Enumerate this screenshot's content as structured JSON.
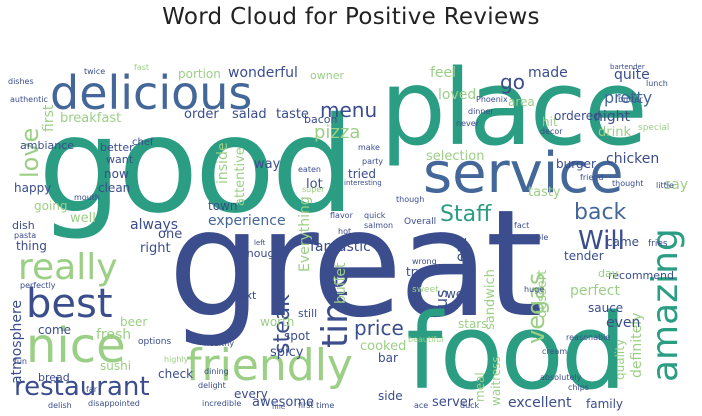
{
  "title": "Word Cloud for Positive Reviews",
  "colors": {
    "teal": "#2a9d82",
    "navy": "#3b4d8c",
    "sage": "#9ccf86",
    "mint": "#b9d9a9",
    "blue": "#44679a"
  },
  "words": {
    "great": "great",
    "good": "good",
    "place": "place",
    "food": "food",
    "service": "service",
    "delicious": "delicious",
    "friendly": "friendly",
    "nice": "nice",
    "best": "best",
    "really": "really",
    "amazing": "amazing",
    "restaurant": "restaurant",
    "time": "time",
    "staff": "Staff",
    "love": "love",
    "back": "back",
    "will": "Will",
    "vegas": "vegas",
    "menu": "menu",
    "pizza": "pizza",
    "steak": "steak",
    "go": "go",
    "made": "made",
    "pretty": "pretty",
    "wonderful": "wonderful",
    "quite": "quite",
    "first": "first",
    "portion": "portion",
    "breakfast": "breakfast",
    "order": "order",
    "salad": "salad",
    "taste": "taste",
    "bacon": "bacon",
    "feel": "feel",
    "loved": "loved",
    "area": "area",
    "night": "night",
    "drink": "drink",
    "hit": "hit",
    "ordered": "ordered",
    "selection": "selection",
    "chicken": "chicken",
    "burger": "burger",
    "tasty": "tasty",
    "say": "say",
    "inside": "inside",
    "attentive": "attentive",
    "everything": "Everything",
    "tried": "tried",
    "lot": "lot",
    "way": "way",
    "awesome": "awesome",
    "experience": "experience",
    "fantastic": "fantastic",
    "always": "always",
    "one": "one",
    "right": "right",
    "town": "town",
    "happy": "happy",
    "clean": "clean",
    "now": "now",
    "going": "going",
    "well": "well",
    "thing": "thing",
    "dish": "dish",
    "pasta": "pasta",
    "try": "try",
    "eat": "eat",
    "wrong": "wrong",
    "sandwich": "sandwich",
    "dessert": "dessert",
    "came": "came",
    "tender": "tender",
    "definitely": "definitely",
    "quality": "quality",
    "perfect": "perfect",
    "buffet": "buffet",
    "went": "went",
    "us": "us",
    "price": "price",
    "fresh": "fresh",
    "beer": "beer",
    "come": "come",
    "atmosphere": "atmosphere",
    "spot": "spot",
    "spicy": "spicy",
    "cooked": "cooked",
    "stars": "stars",
    "even": "even",
    "sauce": "sauce",
    "recommend": "recommend",
    "bar": "bar",
    "check": "check",
    "excellent": "excellent",
    "family": "family",
    "server": "server",
    "side": "side",
    "every": "every",
    "sushi": "sushi",
    "bread": "bread",
    "meal": "meal",
    "waitress": "waitress",
    "worth": "worth",
    "next": "next",
    "ambiance": "ambiance",
    "better": "better",
    "want": "want",
    "still": "still",
    "enough": "enough",
    "day": "day",
    "chef": "chef",
    "owner": "owner",
    "fast": "fast",
    "twice": "twice",
    "bartender": "bartender",
    "lunch": "lunch",
    "butter": "butter",
    "special": "special",
    "decor": "decor",
    "thought": "thought",
    "friend": "friend",
    "little": "little",
    "fact": "fact",
    "fries": "fries",
    "table": "table",
    "huge": "huge",
    "sweet": "sweet",
    "salmon": "salmon",
    "overall": "Overall",
    "quick": "quick",
    "party": "party",
    "super": "super",
    "hot": "hot",
    "flavor": "flavor",
    "make": "make",
    "eaten": "eaten",
    "interesting": "interesting",
    "though": "though",
    "never": "never",
    "dinner": "dinner",
    "phoenix": "Phoenix",
    "authentic": "authentic",
    "dishes": "dishes",
    "mouth": "mouth",
    "options": "options",
    "healthy": "healthy",
    "beautiful": "beautiful",
    "highly": "highly",
    "dining": "dining",
    "delight": "delight",
    "chips": "chips",
    "absolutely": "absolutely",
    "reasonable": "reasonable",
    "cream": "cream",
    "left": "left",
    "perfectly": "perfectly",
    "disappointed": "disappointed",
    "incredible": "incredible",
    "first_time": "first time",
    "delish": "delish",
    "duck": "duck",
    "ace": "ace",
    "fine": "fine",
    "far": "far",
    "fun": "fun"
  }
}
